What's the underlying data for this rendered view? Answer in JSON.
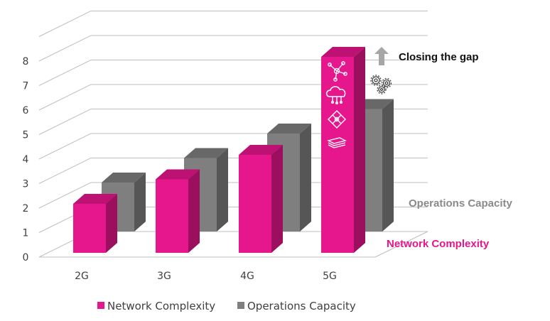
{
  "chart_data": {
    "type": "bar",
    "title": "",
    "xlabel": "",
    "ylabel": "",
    "categories": [
      "2G",
      "3G",
      "4G",
      "5G"
    ],
    "series": [
      {
        "name": "Network Complexity",
        "values": [
          2,
          3,
          4,
          8
        ],
        "color": "#e6168c"
      },
      {
        "name": "Operations Capacity",
        "values": [
          2,
          3,
          4,
          5
        ],
        "color": "#7f7f7f"
      }
    ],
    "ylim": [
      0,
      8
    ],
    "yticks": [
      "0",
      "1",
      "2",
      "3",
      "4",
      "5",
      "6",
      "7",
      "8"
    ],
    "grid": true,
    "legend": "bottom",
    "annotations": {
      "closing_gap": "Closing the gap",
      "operations": "Operations Capacity",
      "network": "Network Complexity"
    },
    "icons": [
      "network-nodes-icon",
      "cloud-icon",
      "network-cross-icon",
      "layers-icon",
      "gears-icon",
      "up-arrow-icon"
    ]
  }
}
